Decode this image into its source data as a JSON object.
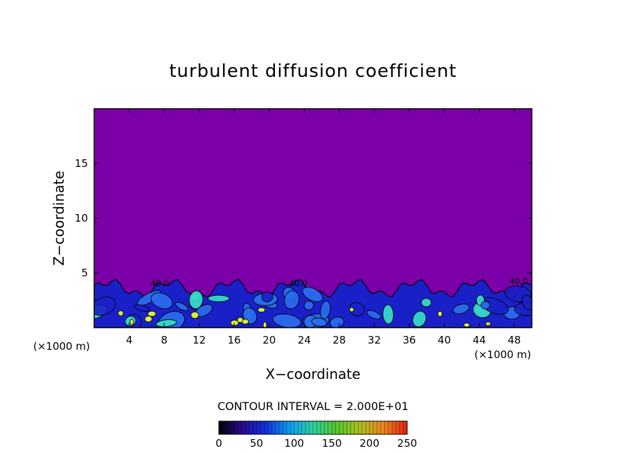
{
  "chart_data": {
    "type": "heatmap",
    "title": "turbulent diffusion coefficient",
    "xlabel": "X−coordinate",
    "ylabel": "Z−coordinate",
    "x_unit": "(×1000 m)",
    "x_unit_right": "(×1000 m)",
    "xlim": [
      0,
      50
    ],
    "ylim": [
      0,
      20
    ],
    "x_ticks": [
      4,
      8,
      12,
      16,
      20,
      24,
      28,
      32,
      36,
      40,
      44,
      48
    ],
    "y_ticks": [
      5,
      10,
      15
    ],
    "x_tick_labels": [
      "4",
      "8",
      "12",
      "16",
      "20",
      "24",
      "28",
      "32",
      "36",
      "40",
      "44",
      "48"
    ],
    "y_tick_labels": [
      "5",
      "10",
      "15"
    ],
    "background_value": 0,
    "turbulent_layer_top_km": 4.5,
    "contour_labels": [
      {
        "text": "40.0",
        "x": 7.5,
        "z": 3.8
      },
      {
        "text": "40.0",
        "x": 23.3,
        "z": 3.8
      },
      {
        "text": "40.0",
        "x": 48.5,
        "z": 4.0
      }
    ],
    "contour_interval_text": "CONTOUR INTERVAL = 2.000E+01",
    "colorbar": {
      "min": 0,
      "max": 250,
      "ticks": [
        0,
        50,
        100,
        150,
        200,
        250
      ],
      "tick_labels": [
        "0",
        "50",
        "100",
        "150",
        "200",
        "250"
      ]
    },
    "colors": {
      "background_field": "#7c00a8",
      "low": "#1a20c8",
      "mid": "#2a6ff0",
      "high": "#38e0c8",
      "peak": "#d8f040",
      "contour": "#000000"
    }
  }
}
